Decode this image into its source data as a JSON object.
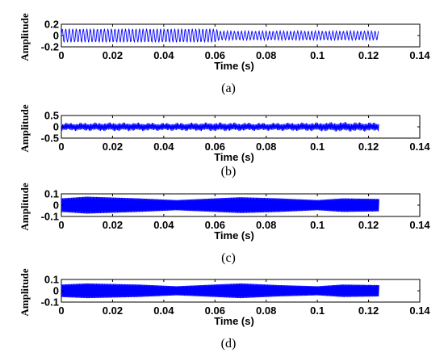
{
  "colors": {
    "signal": "#0000ff",
    "axis": "#000000"
  },
  "chart_data": [
    {
      "type": "line",
      "caption": "(a)",
      "xlabel": "Time (s)",
      "ylabel": "Amplitude",
      "xlim": [
        0,
        0.14
      ],
      "ylim": [
        -0.2,
        0.2
      ],
      "xticks": [
        "0",
        "0.02",
        "0.04",
        "0.06",
        "0.08",
        "0.1",
        "0.12",
        "0.14"
      ],
      "yticks": [
        "0.2",
        "0",
        "-0.2"
      ],
      "series": [
        {
          "x": [
            0,
            0.02,
            0.04,
            0.06,
            0.062,
            0.08,
            0.1,
            0.124
          ],
          "upper": [
            0.12,
            0.12,
            0.12,
            0.12,
            0.08,
            0.08,
            0.08,
            0.08
          ],
          "lower": [
            -0.12,
            -0.12,
            -0.12,
            -0.12,
            -0.08,
            -0.08,
            -0.08,
            -0.08
          ]
        }
      ]
    },
    {
      "type": "line",
      "caption": "(b)",
      "xlabel": "Time (s)",
      "ylabel": "Amplitude",
      "xlim": [
        0,
        0.14
      ],
      "ylim": [
        -0.5,
        0.5
      ],
      "xticks": [
        "0",
        "0.02",
        "0.04",
        "0.06",
        "0.08",
        "0.1",
        "0.12",
        "0.14"
      ],
      "yticks": [
        "0.5",
        "0",
        "-0.5"
      ],
      "series": [
        {
          "x": [
            0,
            0.02,
            0.04,
            0.06,
            0.08,
            0.1,
            0.11,
            0.124
          ],
          "upper": [
            0.18,
            0.2,
            0.18,
            0.2,
            0.18,
            0.2,
            0.22,
            0.2
          ],
          "lower": [
            -0.18,
            -0.2,
            -0.18,
            -0.2,
            -0.18,
            -0.2,
            -0.22,
            -0.2
          ]
        }
      ]
    },
    {
      "type": "area",
      "caption": "(c)",
      "xlabel": "Time (s)",
      "ylabel": "Amplitude",
      "xlim": [
        0,
        0.14
      ],
      "ylim": [
        -0.1,
        0.1
      ],
      "xticks": [
        "0",
        "0.02",
        "0.04",
        "0.06",
        "0.08",
        "0.1",
        "0.12",
        "0.14"
      ],
      "yticks": [
        "0.1",
        "0",
        "-0.1"
      ],
      "series": [
        {
          "x": [
            0,
            0.01,
            0.03,
            0.045,
            0.06,
            0.07,
            0.085,
            0.1,
            0.11,
            0.124
          ],
          "upper": [
            0.06,
            0.075,
            0.06,
            0.045,
            0.06,
            0.07,
            0.06,
            0.045,
            0.06,
            0.055
          ],
          "lower": [
            -0.06,
            -0.075,
            -0.06,
            -0.045,
            -0.06,
            -0.07,
            -0.06,
            -0.045,
            -0.06,
            -0.055
          ]
        }
      ]
    },
    {
      "type": "area",
      "caption": "(d)",
      "xlabel": "Time (s)",
      "ylabel": "Amplitude",
      "xlim": [
        0,
        0.14
      ],
      "ylim": [
        -0.1,
        0.1
      ],
      "xticks": [
        "0",
        "0.02",
        "0.04",
        "0.06",
        "0.08",
        "0.1",
        "0.12",
        "0.14"
      ],
      "yticks": [
        "0.1",
        "0",
        "-0.1"
      ],
      "series": [
        {
          "x": [
            0,
            0.01,
            0.03,
            0.045,
            0.06,
            0.07,
            0.085,
            0.1,
            0.11,
            0.124
          ],
          "upper": [
            0.055,
            0.065,
            0.055,
            0.04,
            0.055,
            0.065,
            0.05,
            0.04,
            0.055,
            0.05
          ],
          "lower": [
            -0.055,
            -0.065,
            -0.055,
            -0.04,
            -0.055,
            -0.065,
            -0.05,
            -0.04,
            -0.055,
            -0.05
          ]
        }
      ]
    }
  ]
}
